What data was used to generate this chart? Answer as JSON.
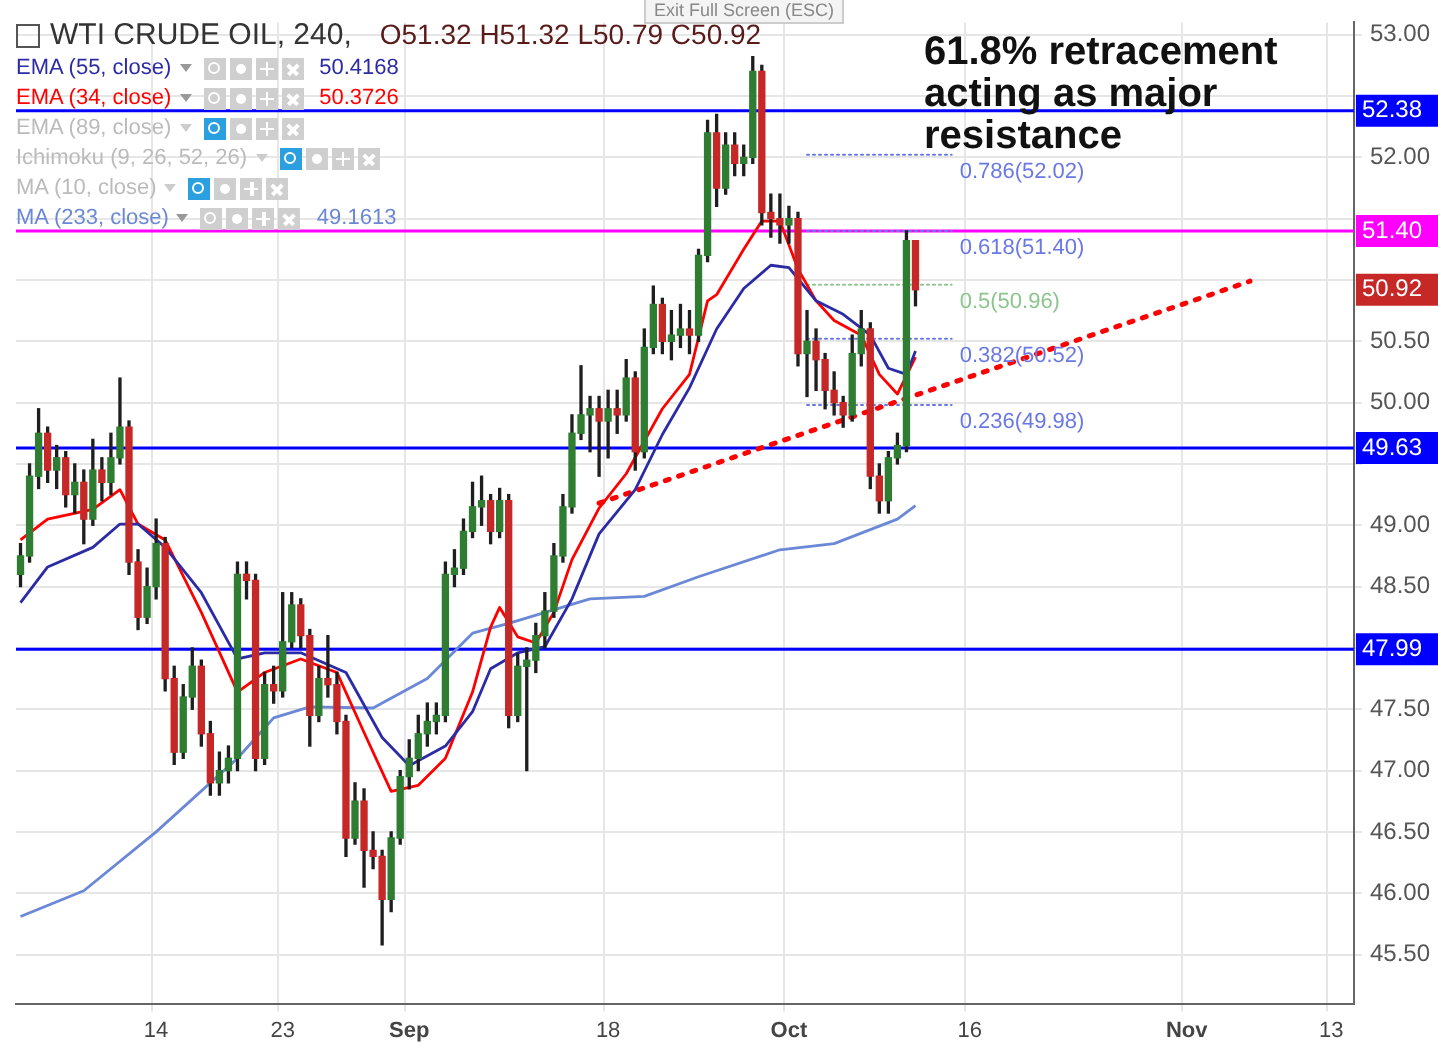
{
  "chart_data": {
    "type": "candlestick",
    "title": "WTI CRUDE OIL, 240,",
    "categories": [
      null,
      null,
      null,
      null,
      null,
      null,
      null,
      null,
      null,
      null,
      null,
      null,
      null,
      null,
      null,
      "14",
      null,
      null,
      null,
      null,
      null,
      null,
      null,
      null,
      null,
      null,
      null,
      null,
      null,
      "23",
      null,
      null,
      null,
      null,
      null,
      null,
      null,
      null,
      null,
      null,
      null,
      null,
      null,
      "Sep",
      null,
      null,
      null,
      null,
      null,
      null,
      null,
      null,
      null,
      null,
      null,
      null,
      null,
      null,
      null,
      null,
      null,
      null,
      null,
      null,
      null,
      "18",
      null,
      null,
      null,
      null,
      null,
      null,
      null,
      null,
      null,
      null,
      null,
      null,
      null,
      null,
      null,
      null,
      null,
      null,
      null,
      "Oct",
      null,
      null,
      null,
      null,
      null,
      null,
      null,
      null,
      null,
      null,
      null,
      null,
      null,
      null,
      null,
      null,
      null,
      null,
      null,
      "16",
      null,
      null,
      null,
      null,
      null,
      null,
      null,
      null,
      null,
      null,
      null,
      null,
      null,
      null,
      null,
      null,
      null,
      null,
      null,
      null,
      null,
      null,
      null,
      "Nov",
      null,
      null,
      null,
      null,
      null,
      null,
      null,
      null,
      null,
      null,
      null,
      null,
      null,
      null,
      null,
      "13",
      null,
      null
    ],
    "ohlc": [
      [
        48.6,
        48.85,
        48.5,
        48.75
      ],
      [
        48.75,
        49.5,
        48.7,
        49.4
      ],
      [
        49.4,
        49.95,
        49.3,
        49.75
      ],
      [
        49.75,
        49.8,
        49.35,
        49.45
      ],
      [
        49.45,
        49.65,
        49.3,
        49.55
      ],
      [
        49.55,
        49.6,
        49.15,
        49.25
      ],
      [
        49.25,
        49.5,
        49.1,
        49.35
      ],
      [
        49.35,
        49.45,
        48.85,
        49.05
      ],
      [
        49.05,
        49.7,
        49.0,
        49.45
      ],
      [
        49.45,
        49.55,
        49.2,
        49.35
      ],
      [
        49.35,
        49.75,
        49.25,
        49.55
      ],
      [
        49.55,
        50.2,
        49.5,
        49.8
      ],
      [
        49.8,
        49.85,
        48.6,
        48.7
      ],
      [
        48.7,
        48.8,
        48.15,
        48.25
      ],
      [
        48.25,
        48.65,
        48.2,
        48.5
      ],
      [
        48.5,
        49.05,
        48.4,
        48.85
      ],
      [
        48.85,
        48.9,
        47.65,
        47.75
      ],
      [
        47.75,
        47.85,
        47.05,
        47.15
      ],
      [
        47.15,
        47.7,
        47.1,
        47.6
      ],
      [
        47.6,
        48.0,
        47.5,
        47.85
      ],
      [
        47.85,
        47.9,
        47.2,
        47.3
      ],
      [
        47.3,
        47.4,
        46.8,
        46.9
      ],
      [
        46.9,
        47.15,
        46.8,
        47.0
      ],
      [
        47.0,
        47.2,
        46.9,
        47.1
      ],
      [
        47.1,
        48.7,
        47.0,
        48.6
      ],
      [
        48.6,
        48.7,
        48.4,
        48.55
      ],
      [
        48.55,
        48.6,
        47.0,
        47.1
      ],
      [
        47.1,
        47.8,
        47.05,
        47.7
      ],
      [
        47.7,
        47.85,
        47.55,
        47.65
      ],
      [
        47.65,
        48.45,
        47.6,
        48.05
      ],
      [
        48.05,
        48.45,
        48.0,
        48.35
      ],
      [
        48.35,
        48.4,
        48.0,
        48.1
      ],
      [
        48.1,
        48.15,
        47.2,
        47.45
      ],
      [
        47.45,
        47.85,
        47.4,
        47.75
      ],
      [
        47.75,
        48.1,
        47.6,
        47.7
      ],
      [
        47.7,
        47.8,
        47.3,
        47.4
      ],
      [
        47.4,
        47.45,
        46.3,
        46.45
      ],
      [
        46.45,
        46.9,
        46.4,
        46.75
      ],
      [
        46.75,
        46.85,
        46.05,
        46.35
      ],
      [
        46.35,
        46.5,
        46.2,
        46.3
      ],
      [
        46.3,
        46.35,
        45.58,
        45.95
      ],
      [
        45.95,
        46.5,
        45.85,
        46.45
      ],
      [
        46.45,
        47.0,
        46.4,
        46.95
      ],
      [
        46.95,
        47.25,
        46.85,
        47.1
      ],
      [
        47.1,
        47.45,
        47.0,
        47.3
      ],
      [
        47.3,
        47.55,
        47.2,
        47.4
      ],
      [
        47.4,
        47.55,
        47.3,
        47.45
      ],
      [
        47.45,
        48.7,
        47.4,
        48.6
      ],
      [
        48.6,
        48.8,
        48.5,
        48.65
      ],
      [
        48.65,
        49.05,
        48.6,
        48.95
      ],
      [
        48.95,
        49.35,
        48.9,
        49.15
      ],
      [
        49.15,
        49.4,
        49.0,
        49.2
      ],
      [
        49.2,
        49.25,
        48.85,
        48.95
      ],
      [
        48.95,
        49.3,
        48.9,
        49.2
      ],
      [
        49.2,
        49.25,
        47.35,
        47.45
      ],
      [
        47.45,
        47.95,
        47.4,
        47.85
      ],
      [
        47.85,
        48.0,
        47.0,
        47.9
      ],
      [
        47.9,
        48.2,
        47.8,
        48.1
      ],
      [
        48.1,
        48.45,
        48.0,
        48.3
      ],
      [
        48.3,
        48.85,
        48.25,
        48.75
      ],
      [
        48.75,
        49.25,
        48.7,
        49.15
      ],
      [
        49.15,
        49.9,
        49.1,
        49.75
      ],
      [
        49.75,
        50.3,
        49.7,
        49.9
      ],
      [
        49.9,
        50.05,
        49.6,
        49.95
      ],
      [
        49.95,
        50.05,
        49.4,
        49.85
      ],
      [
        49.85,
        50.1,
        49.55,
        49.95
      ],
      [
        49.95,
        50.1,
        49.75,
        49.9
      ],
      [
        49.9,
        50.35,
        49.85,
        50.2
      ],
      [
        50.2,
        50.25,
        49.45,
        49.6
      ],
      [
        49.6,
        50.6,
        49.55,
        50.45
      ],
      [
        50.45,
        50.95,
        50.4,
        50.8
      ],
      [
        50.8,
        50.85,
        50.4,
        50.5
      ],
      [
        50.5,
        50.75,
        50.35,
        50.55
      ],
      [
        50.55,
        50.8,
        50.45,
        50.6
      ],
      [
        50.6,
        50.75,
        50.4,
        50.55
      ],
      [
        50.55,
        51.25,
        50.5,
        51.2
      ],
      [
        51.2,
        52.3,
        51.15,
        52.2
      ],
      [
        52.2,
        52.35,
        51.6,
        51.75
      ],
      [
        51.75,
        52.2,
        51.7,
        52.1
      ],
      [
        52.1,
        52.2,
        51.85,
        51.95
      ],
      [
        51.95,
        52.1,
        51.85,
        52.0
      ],
      [
        52.0,
        52.82,
        51.95,
        52.7
      ],
      [
        52.7,
        52.75,
        51.45,
        51.55
      ],
      [
        51.55,
        51.7,
        51.35,
        51.5
      ],
      [
        51.5,
        51.7,
        51.3,
        51.45
      ],
      [
        51.45,
        51.6,
        51.3,
        51.5
      ],
      [
        51.5,
        51.55,
        50.3,
        50.4
      ],
      [
        50.4,
        50.75,
        50.05,
        50.5
      ],
      [
        50.5,
        50.6,
        50.1,
        50.35
      ],
      [
        50.35,
        50.4,
        49.95,
        50.1
      ],
      [
        50.1,
        50.25,
        49.9,
        50.0
      ],
      [
        50.0,
        50.05,
        49.8,
        49.9
      ],
      [
        49.9,
        50.55,
        49.85,
        50.4
      ],
      [
        50.4,
        50.75,
        50.3,
        50.6
      ],
      [
        50.6,
        50.65,
        49.3,
        49.4
      ],
      [
        49.4,
        49.5,
        49.1,
        49.2
      ],
      [
        49.2,
        49.6,
        49.1,
        49.55
      ],
      [
        49.55,
        49.75,
        49.5,
        49.65
      ],
      [
        49.65,
        51.4,
        49.6,
        51.32
      ],
      [
        51.32,
        51.32,
        50.79,
        50.92
      ],
      null,
      null,
      null,
      null,
      null,
      null,
      null,
      null,
      null,
      null,
      null,
      null,
      null,
      null,
      null,
      null,
      null,
      null,
      null,
      null,
      null,
      null,
      null,
      null,
      null,
      null,
      null,
      null,
      null,
      null,
      null,
      null,
      null,
      null,
      null,
      null,
      null,
      null,
      null,
      null,
      null,
      null,
      null,
      null,
      null,
      null,
      null,
      null
    ],
    "series": [
      {
        "type": "line",
        "name": "EMA (55, close)",
        "color": "#2b2ba6",
        "values": [
          48.37,
          null,
          null,
          48.66,
          null,
          null,
          null,
          null,
          48.82,
          null,
          null,
          49.01,
          null,
          49.01,
          null,
          null,
          48.82,
          null,
          null,
          null,
          48.45,
          null,
          null,
          null,
          47.91,
          null,
          null,
          47.96,
          null,
          null,
          null,
          47.96,
          null,
          null,
          null,
          null,
          47.8,
          null,
          null,
          null,
          47.27,
          null,
          null,
          47.04,
          null,
          null,
          null,
          47.2,
          null,
          null,
          47.48,
          null,
          47.83,
          null,
          null,
          47.96,
          null,
          null,
          48.01,
          null,
          null,
          48.4,
          null,
          null,
          48.93,
          null,
          null,
          null,
          49.29,
          null,
          null,
          49.74,
          null,
          null,
          50.12,
          null,
          null,
          50.6,
          null,
          null,
          50.93,
          null,
          null,
          51.12,
          null,
          51.1,
          null,
          null,
          50.83,
          null,
          null,
          50.72,
          null,
          null,
          50.55,
          null,
          50.28,
          null,
          50.23,
          50.42,
          null,
          null,
          null,
          null,
          null,
          null,
          null,
          null,
          null,
          null,
          null,
          null,
          null,
          null,
          null,
          null,
          null,
          null,
          null,
          null,
          null,
          null,
          null,
          null,
          null,
          null,
          null,
          null,
          null,
          null,
          null,
          null,
          null,
          null,
          null,
          null,
          null,
          null,
          null,
          null,
          null,
          null,
          null,
          null,
          null,
          null,
          null,
          null
        ]
      },
      {
        "type": "line",
        "name": "EMA (34, close)",
        "color": "#ff0000",
        "values": [
          48.88,
          null,
          null,
          49.05,
          null,
          null,
          null,
          null,
          49.13,
          null,
          null,
          49.29,
          null,
          49.01,
          null,
          null,
          48.88,
          null,
          null,
          null,
          48.29,
          null,
          null,
          null,
          47.64,
          null,
          null,
          47.8,
          null,
          null,
          null,
          47.91,
          null,
          null,
          null,
          47.8,
          null,
          null,
          47.31,
          null,
          null,
          46.83,
          null,
          null,
          46.88,
          null,
          null,
          47.1,
          null,
          null,
          47.64,
          null,
          48.17,
          48.33,
          null,
          48.09,
          null,
          48.04,
          null,
          48.29,
          null,
          48.72,
          null,
          null,
          49.14,
          null,
          null,
          49.42,
          null,
          null,
          null,
          49.95,
          null,
          null,
          50.23,
          null,
          50.83,
          50.88,
          null,
          null,
          51.25,
          null,
          51.48,
          null,
          51.48,
          null,
          51.09,
          null,
          50.83,
          null,
          50.67,
          null,
          null,
          50.55,
          null,
          50.23,
          null,
          50.07,
          null,
          50.37,
          null,
          null,
          null,
          null,
          null,
          null,
          null,
          null,
          null,
          null,
          null,
          null,
          null,
          null,
          null,
          null,
          null,
          null,
          null,
          null,
          null,
          null,
          null,
          null,
          null,
          null,
          null,
          null,
          null,
          null,
          null,
          null,
          null,
          null,
          null,
          null,
          null,
          null,
          null,
          null,
          null,
          null,
          null,
          null,
          null,
          null,
          null,
          null
        ]
      },
      {
        "type": "line",
        "name": "MA (233, close)",
        "color": "#6a88d6",
        "values": [
          45.81,
          null,
          null,
          null,
          null,
          null,
          null,
          46.02,
          null,
          null,
          null,
          null,
          null,
          null,
          null,
          46.5,
          null,
          null,
          null,
          null,
          null,
          null,
          null,
          null,
          47.1,
          null,
          null,
          null,
          47.43,
          null,
          null,
          null,
          47.52,
          null,
          null,
          null,
          null,
          null,
          null,
          47.51,
          null,
          null,
          null,
          null,
          null,
          47.75,
          null,
          null,
          null,
          null,
          48.12,
          null,
          null,
          null,
          48.2,
          null,
          null,
          null,
          null,
          null,
          null,
          null,
          null,
          48.4,
          null,
          null,
          null,
          null,
          null,
          48.42,
          null,
          null,
          null,
          null,
          null,
          48.58,
          null,
          null,
          null,
          null,
          null,
          null,
          null,
          null,
          48.8,
          null,
          null,
          null,
          null,
          null,
          48.85,
          null,
          null,
          null,
          null,
          null,
          null,
          49.05,
          null,
          49.16,
          null,
          null,
          null,
          null,
          null,
          null,
          null,
          null,
          null,
          null,
          null,
          null,
          null,
          null,
          null,
          null,
          null,
          null,
          null,
          null,
          null,
          null,
          null,
          null,
          null,
          null,
          null,
          null,
          null,
          null,
          null,
          null,
          null,
          null,
          null,
          null,
          null,
          null,
          null,
          null,
          null,
          null,
          null,
          null,
          null,
          null,
          null,
          null
        ]
      },
      {
        "type": "line",
        "color": "#ff0000",
        "line_style": "dotted",
        "values": [
          null,
          null,
          null,
          null,
          null,
          null,
          null,
          null,
          null,
          null,
          null,
          null,
          null,
          null,
          null,
          null,
          null,
          null,
          null,
          null,
          null,
          null,
          null,
          null,
          null,
          null,
          null,
          null,
          null,
          null,
          null,
          null,
          null,
          null,
          null,
          null,
          null,
          null,
          null,
          null,
          null,
          null,
          null,
          null,
          null,
          null,
          null,
          null,
          null,
          null,
          null,
          null,
          null,
          null,
          null,
          null,
          null,
          null,
          null,
          null,
          null,
          null,
          null,
          null,
          49.18,
          null,
          null,
          null,
          null,
          null,
          null,
          null,
          null,
          null,
          null,
          null,
          null,
          null,
          null,
          null,
          null,
          null,
          null,
          null,
          null,
          null,
          null,
          null,
          null,
          null,
          null,
          null,
          null,
          null,
          null,
          null,
          null,
          null,
          null,
          null,
          null,
          null,
          null,
          null,
          null,
          null,
          null,
          null,
          null,
          null,
          null,
          null,
          null,
          null,
          null,
          null,
          null,
          null,
          null,
          null,
          null,
          null,
          null,
          null,
          null,
          null,
          null,
          null,
          null,
          null,
          null,
          null,
          null,
          null,
          null,
          null,
          50.99,
          null,
          null,
          null,
          null,
          null,
          null,
          null,
          null,
          null,
          null,
          null
        ]
      },
      {
        "type": "line",
        "name": "0.786(52.02)",
        "color": "#6a78e6",
        "line_style": "dotted",
        "values": [
          null,
          null,
          null,
          null,
          null,
          null,
          null,
          null,
          null,
          null,
          null,
          null,
          null,
          null,
          null,
          null,
          null,
          null,
          null,
          null,
          null,
          null,
          null,
          null,
          null,
          null,
          null,
          null,
          null,
          null,
          null,
          null,
          null,
          null,
          null,
          null,
          null,
          null,
          null,
          null,
          null,
          null,
          null,
          null,
          null,
          null,
          null,
          null,
          null,
          null,
          null,
          null,
          null,
          null,
          null,
          null,
          null,
          null,
          null,
          null,
          null,
          null,
          null,
          null,
          null,
          null,
          null,
          null,
          null,
          null,
          null,
          null,
          null,
          null,
          null,
          null,
          null,
          null,
          null,
          null,
          null,
          null,
          null,
          null,
          null,
          null,
          null,
          52.02,
          null,
          null,
          null,
          null,
          null,
          null,
          null,
          null,
          null,
          null,
          null,
          null,
          null,
          null,
          null,
          52.02,
          null,
          null,
          null,
          null,
          null,
          null,
          null,
          null,
          null,
          null,
          null,
          null,
          null,
          null,
          null,
          null,
          null,
          null,
          null,
          null,
          null,
          null,
          null,
          null,
          null,
          null,
          null,
          null,
          null,
          null,
          null,
          null,
          null,
          null,
          null,
          null,
          null,
          null,
          null,
          null,
          null,
          null,
          null,
          null
        ]
      },
      {
        "type": "line",
        "name": "0.618(51.40)",
        "color": "#6a78e6",
        "line_style": "dotted",
        "values": [
          null,
          null,
          null,
          null,
          null,
          null,
          null,
          null,
          null,
          null,
          null,
          null,
          null,
          null,
          null,
          null,
          null,
          null,
          null,
          null,
          null,
          null,
          null,
          null,
          null,
          null,
          null,
          null,
          null,
          null,
          null,
          null,
          null,
          null,
          null,
          null,
          null,
          null,
          null,
          null,
          null,
          null,
          null,
          null,
          null,
          null,
          null,
          null,
          null,
          null,
          null,
          null,
          null,
          null,
          null,
          null,
          null,
          null,
          null,
          null,
          null,
          null,
          null,
          null,
          null,
          null,
          null,
          null,
          null,
          null,
          null,
          null,
          null,
          null,
          null,
          null,
          null,
          null,
          null,
          null,
          null,
          null,
          null,
          null,
          null,
          null,
          null,
          51.4,
          null,
          null,
          null,
          null,
          null,
          null,
          null,
          null,
          null,
          null,
          null,
          null,
          null,
          null,
          null,
          51.4,
          null,
          null,
          null,
          null,
          null,
          null,
          null,
          null,
          null,
          null,
          null,
          null,
          null,
          null,
          null,
          null,
          null,
          null,
          null,
          null,
          null,
          null,
          null,
          null,
          null,
          null,
          null,
          null,
          null,
          null,
          null,
          null,
          null,
          null,
          null,
          null,
          null,
          null,
          null,
          null,
          null,
          null,
          null,
          null
        ]
      },
      {
        "type": "line",
        "name": "0.5(50.96)",
        "color": "#8cc68c",
        "line_style": "dotted",
        "values": [
          null,
          null,
          null,
          null,
          null,
          null,
          null,
          null,
          null,
          null,
          null,
          null,
          null,
          null,
          null,
          null,
          null,
          null,
          null,
          null,
          null,
          null,
          null,
          null,
          null,
          null,
          null,
          null,
          null,
          null,
          null,
          null,
          null,
          null,
          null,
          null,
          null,
          null,
          null,
          null,
          null,
          null,
          null,
          null,
          null,
          null,
          null,
          null,
          null,
          null,
          null,
          null,
          null,
          null,
          null,
          null,
          null,
          null,
          null,
          null,
          null,
          null,
          null,
          null,
          null,
          null,
          null,
          null,
          null,
          null,
          null,
          null,
          null,
          null,
          null,
          null,
          null,
          null,
          null,
          null,
          null,
          null,
          null,
          null,
          null,
          null,
          null,
          50.96,
          null,
          null,
          null,
          null,
          null,
          null,
          null,
          null,
          null,
          null,
          null,
          null,
          null,
          null,
          null,
          50.96,
          null,
          null,
          null,
          null,
          null,
          null,
          null,
          null,
          null,
          null,
          null,
          null,
          null,
          null,
          null,
          null,
          null,
          null,
          null,
          null,
          null,
          null,
          null,
          null,
          null,
          null,
          null,
          null,
          null,
          null,
          null,
          null,
          null,
          null,
          null,
          null,
          null,
          null,
          null,
          null,
          null,
          null,
          null,
          null
        ]
      },
      {
        "type": "line",
        "name": "0.382(50.52)",
        "color": "#6a78e6",
        "line_style": "dotted",
        "values": [
          null,
          null,
          null,
          null,
          null,
          null,
          null,
          null,
          null,
          null,
          null,
          null,
          null,
          null,
          null,
          null,
          null,
          null,
          null,
          null,
          null,
          null,
          null,
          null,
          null,
          null,
          null,
          null,
          null,
          null,
          null,
          null,
          null,
          null,
          null,
          null,
          null,
          null,
          null,
          null,
          null,
          null,
          null,
          null,
          null,
          null,
          null,
          null,
          null,
          null,
          null,
          null,
          null,
          null,
          null,
          null,
          null,
          null,
          null,
          null,
          null,
          null,
          null,
          null,
          null,
          null,
          null,
          null,
          null,
          null,
          null,
          null,
          null,
          null,
          null,
          null,
          null,
          null,
          null,
          null,
          null,
          null,
          null,
          null,
          null,
          null,
          null,
          50.52,
          null,
          null,
          null,
          null,
          null,
          null,
          null,
          null,
          null,
          null,
          null,
          null,
          null,
          null,
          null,
          50.52,
          null,
          null,
          null,
          null,
          null,
          null,
          null,
          null,
          null,
          null,
          null,
          null,
          null,
          null,
          null,
          null,
          null,
          null,
          null,
          null,
          null,
          null,
          null,
          null,
          null,
          null,
          null,
          null,
          null,
          null,
          null,
          null,
          null,
          null,
          null,
          null,
          null,
          null,
          null,
          null,
          null,
          null,
          null,
          null
        ]
      },
      {
        "type": "line",
        "name": "0.236(49.98)",
        "color": "#6a78e6",
        "line_style": "dotted",
        "values": [
          null,
          null,
          null,
          null,
          null,
          null,
          null,
          null,
          null,
          null,
          null,
          null,
          null,
          null,
          null,
          null,
          null,
          null,
          null,
          null,
          null,
          null,
          null,
          null,
          null,
          null,
          null,
          null,
          null,
          null,
          null,
          null,
          null,
          null,
          null,
          null,
          null,
          null,
          null,
          null,
          null,
          null,
          null,
          null,
          null,
          null,
          null,
          null,
          null,
          null,
          null,
          null,
          null,
          null,
          null,
          null,
          null,
          null,
          null,
          null,
          null,
          null,
          null,
          null,
          null,
          null,
          null,
          null,
          null,
          null,
          null,
          null,
          null,
          null,
          null,
          null,
          null,
          null,
          null,
          null,
          null,
          null,
          null,
          null,
          null,
          null,
          null,
          49.98,
          null,
          null,
          null,
          null,
          null,
          null,
          null,
          null,
          null,
          null,
          null,
          null,
          null,
          null,
          null,
          49.98,
          null,
          null,
          null,
          null,
          null,
          null,
          null,
          null,
          null,
          null,
          null,
          null,
          null,
          null,
          null,
          null,
          null,
          null,
          null,
          null,
          null,
          null,
          null,
          null,
          null,
          null,
          null,
          null,
          null,
          null,
          null,
          null,
          null,
          null,
          null,
          null,
          null,
          null,
          null,
          null,
          null,
          null,
          null,
          null
        ]
      }
    ],
    "ylim": [
      45.1,
      53.1
    ],
    "yticks": [
      {
        "value": 45.5,
        "label": "45.50"
      },
      {
        "value": 46,
        "label": "46.00"
      },
      {
        "value": 46.5,
        "label": "46.50"
      },
      {
        "value": 47,
        "label": "47.00"
      },
      {
        "value": 47.5,
        "label": "47.50"
      },
      {
        "value": 48,
        "label": null
      },
      {
        "value": 48.5,
        "label": "48.50"
      },
      {
        "value": 49,
        "label": "49.00"
      },
      {
        "value": 49.5,
        "label": null
      },
      {
        "value": 50,
        "label": "50.00"
      },
      {
        "value": 50.5,
        "label": "50.50"
      },
      {
        "value": 51,
        "label": null
      },
      {
        "value": 51.5,
        "label": null
      },
      {
        "value": 52,
        "label": "52.00"
      },
      {
        "value": 52.5,
        "label": null
      },
      {
        "value": 53,
        "label": "53.00"
      }
    ],
    "ref_lines": [
      {
        "axis": "y",
        "value": 52.38,
        "label": "52.38",
        "color": "#0000ff"
      },
      {
        "axis": "y",
        "value": 51.4,
        "label": "51.40",
        "color": "#ff00ff"
      },
      {
        "axis": "y",
        "value": 49.63,
        "label": "49.63",
        "color": "#0000ff"
      },
      {
        "axis": "y",
        "value": 47.99,
        "label": "47.99",
        "color": "#0000ff"
      }
    ],
    "annotations": [
      "O51.32 H51.32 L50.79 C50.92",
      "EMA (89, close)",
      "Ichimoku (9, 26, 52, 26)",
      "MA (10, close)",
      "61.8% retracement acting as major resistance",
      "Exit Full Screen (ESC)",
      "50.92",
      "50.4168",
      "50.3726",
      "49.1613"
    ],
    "grid": true,
    "legend": "top left"
  }
}
